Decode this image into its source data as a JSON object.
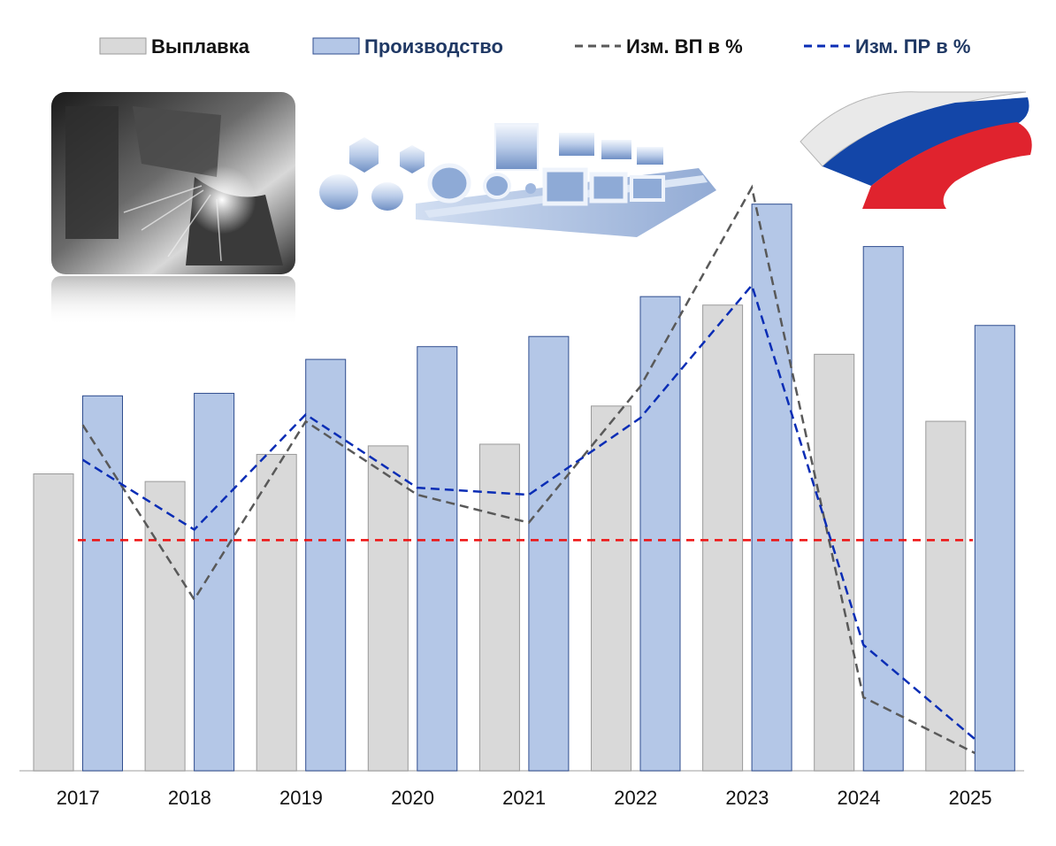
{
  "legend": [
    {
      "label": "Выплавка",
      "kind": "bar",
      "color": "#d9d9d9",
      "stroke": "#9a9a9a",
      "text_color": "#111111"
    },
    {
      "label": "Производство",
      "kind": "bar",
      "color": "#b4c7e7",
      "stroke": "#2f4d8f",
      "text_color": "#1f3864"
    },
    {
      "label": "Изм. ВП в %",
      "kind": "dash",
      "color": "#595959",
      "text_color": "#111111"
    },
    {
      "label": "Изм. ПР в %",
      "kind": "dash",
      "color": "#0a2db5",
      "text_color": "#1f3864"
    }
  ],
  "images": {
    "metal_pour": "metal-pouring-photo",
    "steel_profiles": "steel-profiles-illustration",
    "flag": "russian-flag-ribbon"
  },
  "chart_data": {
    "type": "bar",
    "categories": [
      "2017",
      "2018",
      "2019",
      "2020",
      "2021",
      "2022",
      "2023",
      "2024",
      "2025"
    ],
    "series": [
      {
        "name": "Выплавка",
        "kind": "bar",
        "color": "#d9d9d9",
        "values": [
          350,
          341,
          373,
          383,
          385,
          430,
          549,
          491,
          412
        ]
      },
      {
        "name": "Производство",
        "kind": "bar",
        "color": "#b4c7e7",
        "values": [
          442,
          445,
          485,
          500,
          512,
          559,
          668,
          618,
          525
        ]
      },
      {
        "name": "Изм. ВП в %",
        "kind": "line",
        "dashed": true,
        "color": "#595959",
        "values": [
          1.2,
          -3.8,
          1.3,
          -0.8,
          -1.6,
          2.3,
          8.0,
          -6.6,
          -8.2
        ]
      },
      {
        "name": "Изм. ПР в %",
        "kind": "line",
        "dashed": true,
        "color": "#0a2db5",
        "values": [
          0.2,
          -1.8,
          1.5,
          -0.6,
          -0.8,
          1.4,
          5.2,
          -5.1,
          -7.8
        ]
      }
    ],
    "reference_line": {
      "value": -2.1,
      "color": "#ee1111",
      "dashed": true
    },
    "ylim_bars": [
      0,
      700
    ],
    "ylim_lines": [
      -10,
      10
    ],
    "grid": false,
    "legend_position": "top"
  }
}
